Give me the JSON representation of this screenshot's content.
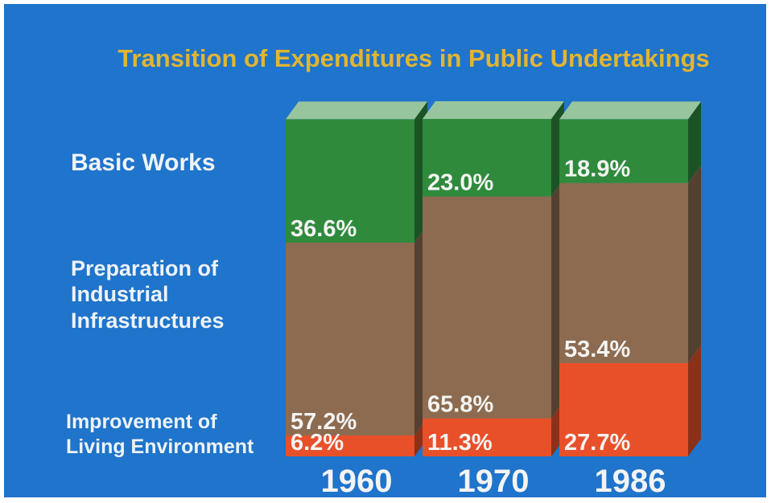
{
  "chart_data": {
    "type": "stacked-bar-3d",
    "title": "Transition of Expenditures in Public Undertakings",
    "categories": [
      "1960",
      "1970",
      "1986"
    ],
    "series": [
      {
        "name": "Basic Works",
        "color": "#2f8a3c",
        "values": [
          36.6,
          23.0,
          18.9
        ],
        "value_labels": [
          "36.6%",
          "23.0%",
          "18.9%"
        ]
      },
      {
        "name": "Preparation of Industrial Infrastructures",
        "color": "#8c6b50",
        "values": [
          57.2,
          65.8,
          53.4
        ],
        "value_labels": [
          "57.2%",
          "65.8%",
          "53.4%"
        ]
      },
      {
        "name": "Improvement of Living Environment",
        "color": "#e8502a",
        "values": [
          6.2,
          11.3,
          27.7
        ],
        "value_labels": [
          "6.2%",
          "11.3%",
          "27.7%"
        ]
      }
    ]
  }
}
